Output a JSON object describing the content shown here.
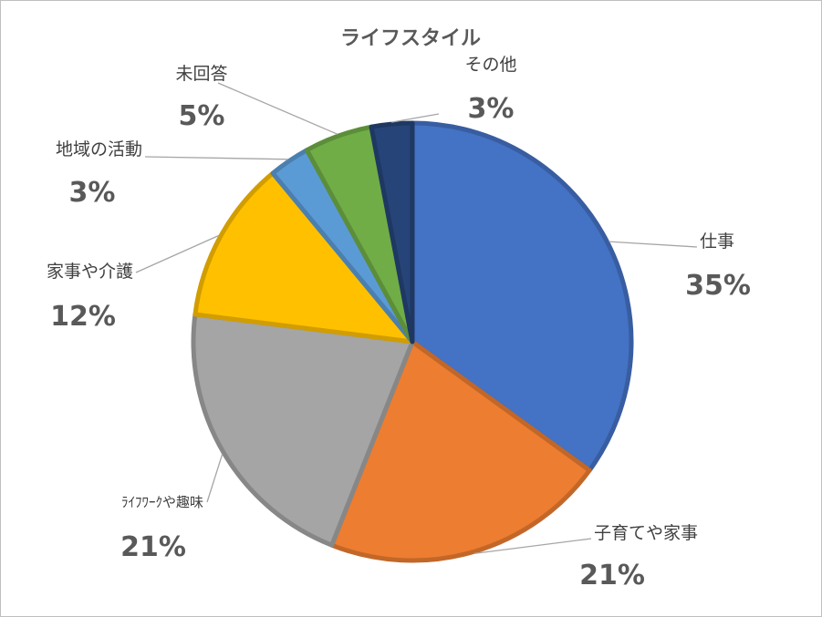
{
  "chart_data": {
    "type": "pie",
    "title": "ライフスタイル",
    "slices": [
      {
        "name": "仕事",
        "value": 35,
        "label": "35%",
        "color": "#4472C4"
      },
      {
        "name": "子育てや家事",
        "value": 21,
        "label": "21%",
        "color": "#ED7D31"
      },
      {
        "name": "ﾗｲﾌﾜｰｸや趣味",
        "value": 21,
        "label": "21%",
        "color": "#A5A5A5"
      },
      {
        "name": "家事や介護",
        "value": 12,
        "label": "12%",
        "color": "#FFC000"
      },
      {
        "name": "地域の活動",
        "value": 3,
        "label": "3%",
        "color": "#5B9BD5"
      },
      {
        "name": "未回答",
        "value": 5,
        "label": "5%",
        "color": "#70AD47"
      },
      {
        "name": "その他",
        "value": 3,
        "label": "3%",
        "color": "#264478"
      }
    ],
    "legend": "none",
    "data_labels": "category and percentage, outside with leader lines"
  }
}
